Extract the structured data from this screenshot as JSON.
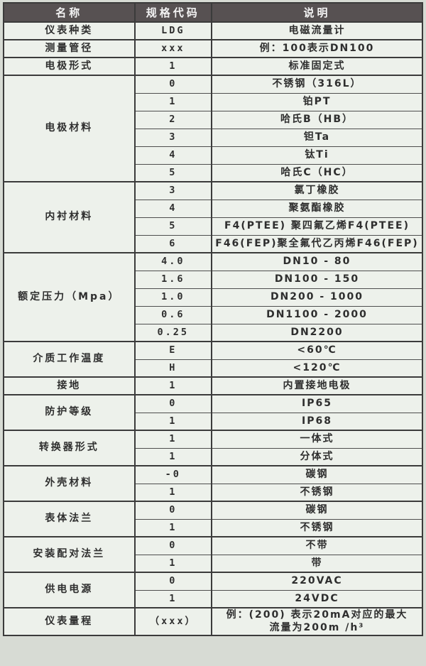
{
  "colors": {
    "page_bg": "#d7dbd4",
    "cell_bg": "#edf1eb",
    "header_bg": "#575152",
    "header_text": "#f4f4f4",
    "border": "#3b3b3b",
    "text": "#2e2e2e"
  },
  "table": {
    "columns": [
      {
        "key": "name",
        "label": "名称"
      },
      {
        "key": "code",
        "label": "规格代码"
      },
      {
        "key": "desc",
        "label": "说明"
      }
    ],
    "groups": [
      {
        "name": "仪表种类",
        "rows": [
          {
            "code": "LDG",
            "desc": "电磁流量计"
          }
        ]
      },
      {
        "name": "测量管径",
        "rows": [
          {
            "code": "xxx",
            "desc": "例：100表示DN100"
          }
        ]
      },
      {
        "name": "电极形式",
        "rows": [
          {
            "code": "1",
            "desc": "标准固定式"
          }
        ]
      },
      {
        "name": "电极材料",
        "rows": [
          {
            "code": "0",
            "desc": "不锈钢（316L）"
          },
          {
            "code": "1",
            "desc": "铂PT"
          },
          {
            "code": "2",
            "desc": "哈氏B（HB）"
          },
          {
            "code": "3",
            "desc": "钽Ta"
          },
          {
            "code": "4",
            "desc": "钛Ti"
          },
          {
            "code": "5",
            "desc": "哈氏C（HC）"
          }
        ]
      },
      {
        "name": "内衬材料",
        "rows": [
          {
            "code": "3",
            "desc": "氯丁橡胶"
          },
          {
            "code": "4",
            "desc": "聚氨酯橡胶"
          },
          {
            "code": "5",
            "desc": "F4(PTEE) 聚四氟乙烯F4(PTEE)"
          },
          {
            "code": "6",
            "desc": "F46(FEP)聚全氟代乙丙烯F46(FEP)"
          }
        ]
      },
      {
        "name": "额定压力（Mpa）",
        "rows": [
          {
            "code": "4.0",
            "desc": "DN10 - 80"
          },
          {
            "code": "1.6",
            "desc": "DN100 - 150"
          },
          {
            "code": "1.0",
            "desc": "DN200 - 1000"
          },
          {
            "code": "0.6",
            "desc": "DN1100 - 2000"
          },
          {
            "code": "0.25",
            "desc": "DN2200"
          }
        ]
      },
      {
        "name": "介质工作温度",
        "rows": [
          {
            "code": "E",
            "desc": "<60℃"
          },
          {
            "code": "H",
            "desc": "<120℃"
          }
        ]
      },
      {
        "name": "接地",
        "rows": [
          {
            "code": "1",
            "desc": "内置接地电极"
          }
        ]
      },
      {
        "name": "防护等级",
        "rows": [
          {
            "code": "0",
            "desc": "IP65"
          },
          {
            "code": "1",
            "desc": "IP68"
          }
        ]
      },
      {
        "name": "转换器形式",
        "rows": [
          {
            "code": "1",
            "desc": "一体式"
          },
          {
            "code": "1",
            "desc": "分体式"
          }
        ]
      },
      {
        "name": "外壳材料",
        "rows": [
          {
            "code": "-0",
            "desc": "碳钢"
          },
          {
            "code": "1",
            "desc": "不锈钢"
          }
        ]
      },
      {
        "name": "表体法兰",
        "rows": [
          {
            "code": "0",
            "desc": "碳钢"
          },
          {
            "code": "1",
            "desc": "不锈钢"
          }
        ]
      },
      {
        "name": "安装配对法兰",
        "rows": [
          {
            "code": "0",
            "desc": "不带"
          },
          {
            "code": "1",
            "desc": "带"
          }
        ]
      },
      {
        "name": "供电电源",
        "rows": [
          {
            "code": "0",
            "desc": "220VAC"
          },
          {
            "code": "1",
            "desc": "24VDC"
          }
        ]
      },
      {
        "name": "仪表量程",
        "rows": [
          {
            "code": "（xxx）",
            "desc": "例：(200) 表示20mA对应的最大\n流量为200m /h³"
          }
        ]
      }
    ]
  }
}
